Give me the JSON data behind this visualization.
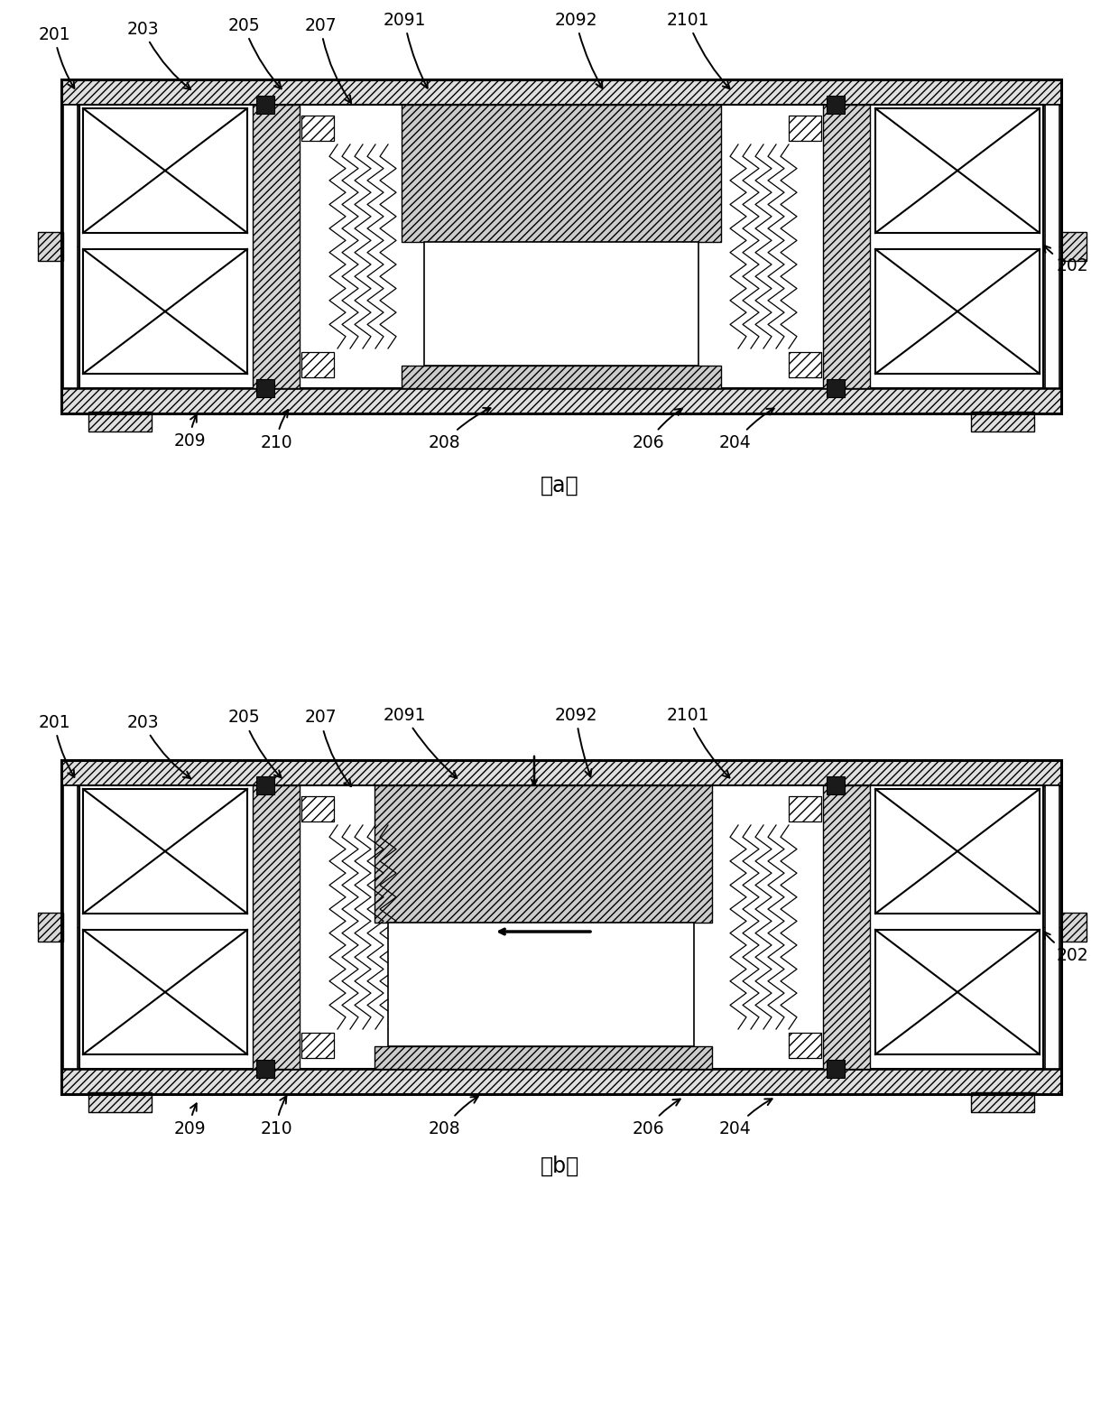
{
  "fig_width": 12.4,
  "fig_height": 15.73,
  "annotations_a_top": {
    "201": [
      62,
      38,
      88,
      100
    ],
    "203": [
      160,
      32,
      218,
      100
    ],
    "205": [
      272,
      28,
      318,
      100
    ],
    "207": [
      358,
      28,
      392,
      115
    ],
    "2091": [
      448,
      22,
      478,
      100
    ],
    "2092": [
      638,
      22,
      672,
      100
    ],
    "2101": [
      762,
      22,
      812,
      100
    ]
  },
  "annotations_a_bot": {
    "209": [
      212,
      488,
      222,
      458
    ],
    "210": [
      308,
      488,
      325,
      452
    ],
    "208": [
      495,
      488,
      548,
      452
    ],
    "206": [
      722,
      488,
      762,
      452
    ],
    "204": [
      818,
      488,
      865,
      452
    ]
  },
  "annotation_a_right": {
    "202": [
      1185,
      295,
      1152,
      268
    ]
  },
  "annotations_b_top": {
    "201": [
      62,
      800,
      88,
      862
    ],
    "203": [
      160,
      800,
      218,
      862
    ],
    "205": [
      272,
      795,
      318,
      862
    ],
    "207": [
      358,
      795,
      392,
      870
    ],
    "2091": [
      448,
      792,
      510,
      862
    ],
    "2092": [
      638,
      792,
      658,
      862
    ],
    "2101": [
      762,
      792,
      812,
      862
    ]
  },
  "annotations_b_bot": {
    "209": [
      212,
      1250,
      222,
      1218
    ],
    "210": [
      308,
      1250,
      322,
      1210
    ],
    "208": [
      495,
      1250,
      535,
      1212
    ],
    "206": [
      722,
      1250,
      760,
      1215
    ],
    "204": [
      818,
      1250,
      862,
      1215
    ]
  },
  "annotation_b_right": {
    "202": [
      1185,
      1055,
      1152,
      1025
    ]
  }
}
